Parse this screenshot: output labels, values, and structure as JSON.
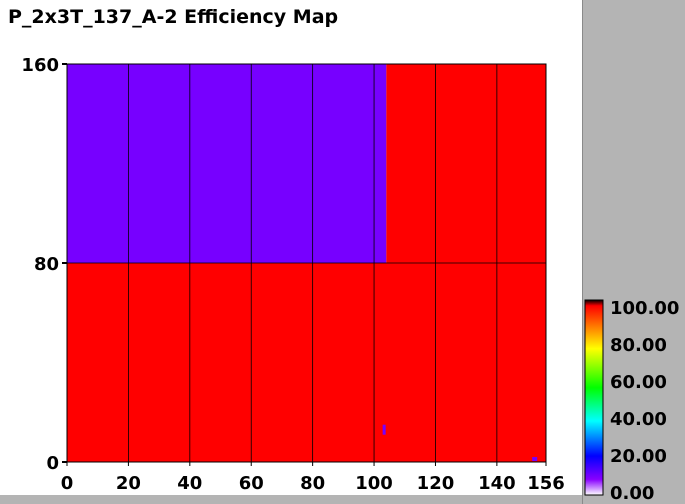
{
  "chart_data": {
    "type": "heatmap",
    "title": "P_2x3T_137_A-2 Efficiency Map",
    "xlabel": "",
    "ylabel": "",
    "xlim": [
      0,
      156
    ],
    "ylim": [
      0,
      160
    ],
    "x_ticks": [
      "0",
      "20",
      "40",
      "60",
      "80",
      "100",
      "120",
      "140",
      "156"
    ],
    "y_ticks": [
      "0",
      "80",
      "160"
    ],
    "grid": true,
    "cells": [
      {
        "x0": 0,
        "x1": 104,
        "y0": 80,
        "y1": 160,
        "value": 20,
        "color": "#7700ff"
      },
      {
        "x0": 104,
        "x1": 156,
        "y0": 80,
        "y1": 160,
        "value": 100,
        "color": "#ff0000"
      },
      {
        "x0": 0,
        "x1": 156,
        "y0": 0,
        "y1": 80,
        "value": 100,
        "color": "#ff0000"
      }
    ],
    "colorbar": {
      "labels": [
        "100.00",
        "80.00",
        "60.00",
        "40.00",
        "20.00",
        "0.00"
      ],
      "stops": [
        "#000000",
        "#ff0000",
        "#ffff00",
        "#00ff00",
        "#00ffff",
        "#0000ff",
        "#8800ff",
        "#ffffff"
      ]
    }
  }
}
